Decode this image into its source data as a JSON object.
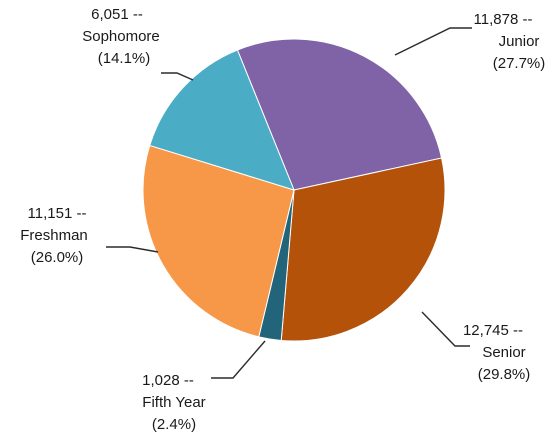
{
  "chart_data": {
    "type": "pie",
    "title": "",
    "slices": [
      {
        "name": "Junior",
        "value": 11878,
        "value_label": "11,878 --",
        "pct_label": "(27.7%)",
        "color": "#7f63a6"
      },
      {
        "name": "Senior",
        "value": 12745,
        "value_label": "12,745 --",
        "pct_label": "(29.8%)",
        "color": "#b4520a"
      },
      {
        "name": "Fifth Year",
        "value": 1028,
        "value_label": "1,028 --",
        "pct_label": "(2.4%)",
        "color": "#22647a"
      },
      {
        "name": "Freshman",
        "value": 11151,
        "value_label": "11,151 --",
        "pct_label": "(26.0%)",
        "color": "#f79848"
      },
      {
        "name": "Sophomore",
        "value": 6051,
        "value_label": "6,051 --",
        "pct_label": "(14.1%)",
        "color": "#4bacc6"
      }
    ],
    "legend": "none"
  }
}
